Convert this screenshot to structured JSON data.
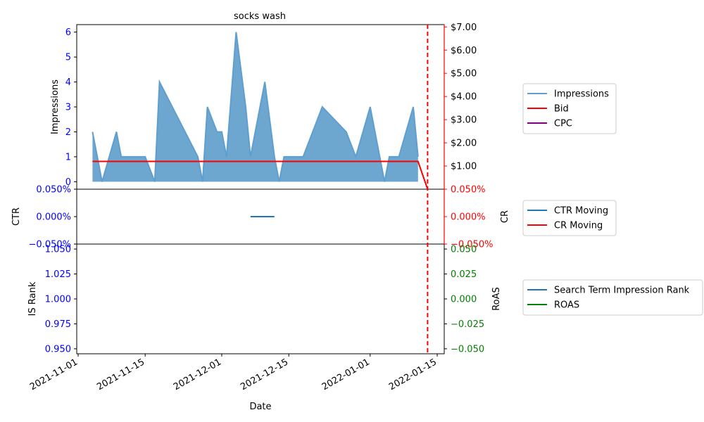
{
  "chart_data": {
    "type": "area",
    "title": "socks wash",
    "xlabel": "Date",
    "x_ticks": [
      "2021-11-01",
      "2021-11-15",
      "2021-12-01",
      "2021-12-15",
      "2022-01-01",
      "2022-01-15"
    ],
    "vline_date": "2022-01-13",
    "colors": {
      "impressions_fill": "#1f77b4",
      "impressions_line": "#5f9fd0",
      "bid": "#ff0000",
      "cpc": "#800080",
      "ctr": "#1f77b4",
      "cr": "#ff0000",
      "is_rank": "#1f77b4",
      "roas": "#008000",
      "left_tick": "#0000ff",
      "right_tick_red": "#ff0000",
      "right_tick_green": "#008000",
      "vline": "#ff0000"
    },
    "panels": [
      {
        "left_label": "Impressions",
        "left_ylim": [
          -0.3,
          6.3
        ],
        "left_ticks": [
          "0",
          "1",
          "2",
          "3",
          "4",
          "5",
          "6"
        ],
        "right_ylim": [
          0,
          7.1
        ],
        "right_ticks": [
          "$1.00",
          "$2.00",
          "$3.00",
          "$4.00",
          "$5.00",
          "$6.00",
          "$7.00"
        ],
        "right_tick_values": [
          1,
          2,
          3,
          4,
          5,
          6,
          7
        ],
        "series": [
          {
            "name": "Impressions",
            "axis": "left",
            "x": [
              "2021-11-04",
              "2021-11-06",
              "2021-11-09",
              "2021-11-10",
              "2021-11-15",
              "2021-11-17",
              "2021-11-18",
              "2021-11-26",
              "2021-11-27",
              "2021-11-28",
              "2021-11-30",
              "2021-12-01",
              "2021-12-02",
              "2021-12-03",
              "2021-12-04",
              "2021-12-06",
              "2021-12-07",
              "2021-12-09",
              "2021-12-10",
              "2021-12-12",
              "2021-12-13",
              "2021-12-14",
              "2021-12-18",
              "2021-12-22",
              "2021-12-27",
              "2021-12-29",
              "2022-01-01",
              "2022-01-04",
              "2022-01-05",
              "2022-01-07",
              "2022-01-10",
              "2022-01-11"
            ],
            "y": [
              2,
              0,
              2,
              1,
              1,
              0,
              4,
              1,
              0,
              3,
              2,
              2,
              1,
              3.5,
              6,
              3,
              1,
              3,
              4,
              1,
              0,
              1,
              1,
              3,
              2,
              1,
              3,
              0,
              1,
              1,
              3,
              1
            ]
          },
          {
            "name": "Bid",
            "axis": "right",
            "x": [
              "2021-11-04",
              "2022-01-11",
              "2022-01-13"
            ],
            "y": [
              1.2,
              1.2,
              0
            ]
          },
          {
            "name": "CPC",
            "axis": "right",
            "x": [],
            "y": []
          }
        ],
        "legend": [
          "Impressions",
          "Bid",
          "CPC"
        ]
      },
      {
        "left_label": "CTR",
        "right_label": "CR",
        "left_ylim": [
          -0.05,
          0.05
        ],
        "left_ticks": [
          "−0.050%",
          "0.000%",
          "0.050%"
        ],
        "right_ticks": [
          "−0.050%",
          "0.000%",
          "0.050%"
        ],
        "series": [
          {
            "name": "CTR Moving",
            "x": [
              "2021-12-07",
              "2021-12-12"
            ],
            "y": [
              0,
              0
            ]
          },
          {
            "name": "CR Moving",
            "x": [],
            "y": []
          }
        ],
        "legend": [
          "CTR Moving",
          "CR Moving"
        ]
      },
      {
        "left_label": "IS Rank",
        "right_label": "RoAS",
        "left_ylim": [
          0.945,
          1.055
        ],
        "left_ticks": [
          "0.950",
          "0.975",
          "1.000",
          "1.025",
          "1.050"
        ],
        "left_tick_values": [
          0.95,
          0.975,
          1.0,
          1.025,
          1.05
        ],
        "right_ylim": [
          -0.055,
          0.055
        ],
        "right_ticks": [
          "−0.050",
          "−0.025",
          "0.000",
          "0.025",
          "0.050"
        ],
        "right_tick_values": [
          -0.05,
          -0.025,
          0,
          0.025,
          0.05
        ],
        "series": [
          {
            "name": "Search Term Impression Rank",
            "x": [],
            "y": []
          },
          {
            "name": "ROAS",
            "x": [],
            "y": []
          }
        ],
        "legend": [
          "Search Term Impression Rank",
          "ROAS"
        ]
      }
    ]
  }
}
